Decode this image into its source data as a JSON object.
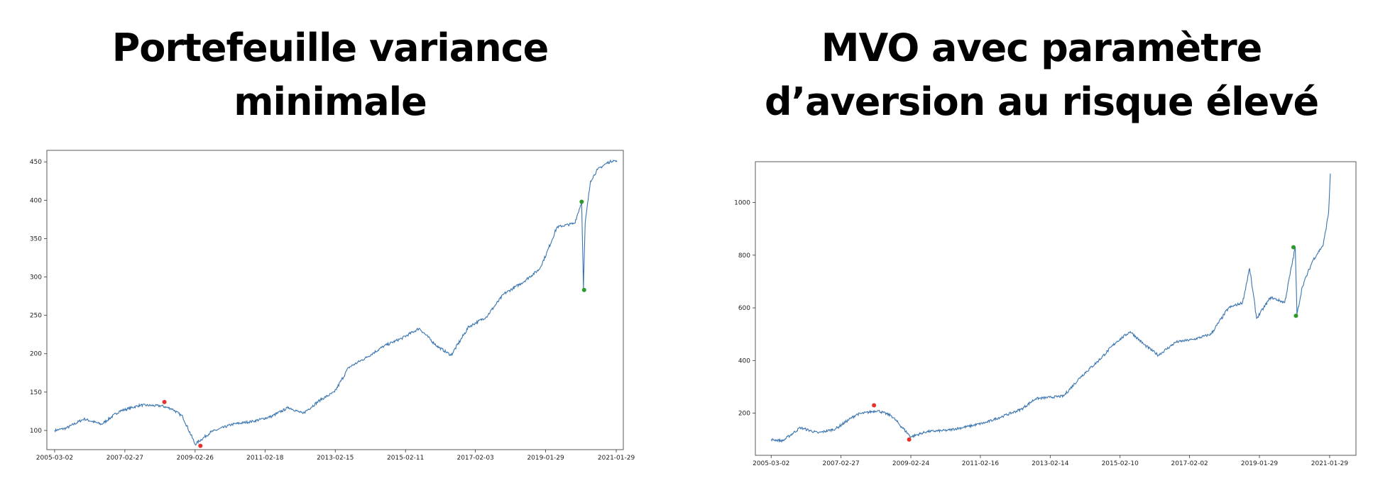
{
  "panels": [
    {
      "title_line1": "Portefeuille variance",
      "title_line2": "minimale"
    },
    {
      "title_line1": "MVO avec paramètre",
      "title_line2": "d’aversion au risque élevé"
    }
  ],
  "chart_data": [
    {
      "type": "line",
      "title": "Portefeuille variance minimale",
      "xlabel": "",
      "ylabel": "",
      "grid": false,
      "x_tick_labels": [
        "2005-03-02",
        "2007-02-27",
        "2009-02-26",
        "2011-02-18",
        "2013-02-15",
        "2015-02-11",
        "2017-02-03",
        "2019-01-29",
        "2021-01-29"
      ],
      "x_ticks_decimal_year": [
        2005.17,
        2007.16,
        2009.15,
        2011.13,
        2013.12,
        2015.11,
        2017.09,
        2019.08,
        2021.08
      ],
      "xlim": [
        2004.95,
        2021.28
      ],
      "ylim": [
        75,
        465
      ],
      "y_ticks": [
        100,
        150,
        200,
        250,
        300,
        350,
        400,
        450
      ],
      "series": [
        {
          "color": "#3a75b0",
          "x": [
            2005.17,
            2005.5,
            2006.0,
            2006.5,
            2007.0,
            2007.6,
            2008.2,
            2008.5,
            2008.8,
            2009.15,
            2009.6,
            2010.2,
            2010.8,
            2011.3,
            2011.8,
            2012.2,
            2012.7,
            2013.1,
            2013.5,
            2014.0,
            2014.5,
            2015.0,
            2015.5,
            2016.0,
            2016.4,
            2016.9,
            2017.4,
            2017.9,
            2018.4,
            2018.9,
            2019.1,
            2019.4,
            2019.9,
            2020.1,
            2020.15,
            2020.2,
            2020.35,
            2020.55,
            2020.8,
            2021.0,
            2021.1
          ],
          "y": [
            100,
            103,
            115,
            108,
            125,
            133,
            132,
            128,
            118,
            82,
            98,
            108,
            112,
            118,
            130,
            122,
            140,
            150,
            182,
            195,
            210,
            220,
            233,
            210,
            198,
            235,
            248,
            278,
            292,
            310,
            330,
            365,
            370,
            398,
            285,
            370,
            425,
            440,
            448,
            452,
            450
          ]
        }
      ],
      "markers": [
        {
          "x": 2008.28,
          "y": 137,
          "color": "#e8312a"
        },
        {
          "x": 2009.3,
          "y": 80,
          "color": "#e8312a"
        },
        {
          "x": 2020.1,
          "y": 398,
          "color": "#2a9a2a"
        },
        {
          "x": 2020.17,
          "y": 283,
          "color": "#2a9a2a"
        }
      ]
    },
    {
      "type": "line",
      "title": "MVO avec paramètre d’aversion au risque élevé",
      "xlabel": "",
      "ylabel": "",
      "grid": false,
      "x_tick_labels": [
        "2005-03-02",
        "2007-02-27",
        "2009-02-24",
        "2011-02-16",
        "2013-02-14",
        "2015-02-10",
        "2017-02-02",
        "2019-01-29",
        "2021-01-29"
      ],
      "x_ticks_decimal_year": [
        2005.17,
        2007.16,
        2009.15,
        2011.13,
        2013.12,
        2015.11,
        2017.09,
        2019.08,
        2021.08
      ],
      "xlim": [
        2004.72,
        2021.83
      ],
      "ylim": [
        40,
        1155
      ],
      "y_ticks": [
        200,
        400,
        600,
        800,
        1000
      ],
      "series": [
        {
          "color": "#3a75b0",
          "x": [
            2005.17,
            2005.5,
            2006.0,
            2006.5,
            2007.0,
            2007.6,
            2008.2,
            2008.6,
            2009.15,
            2009.6,
            2010.2,
            2010.8,
            2011.3,
            2011.8,
            2012.3,
            2012.7,
            2013.1,
            2013.5,
            2014.0,
            2014.5,
            2015.0,
            2015.4,
            2015.8,
            2016.2,
            2016.7,
            2017.2,
            2017.7,
            2018.2,
            2018.6,
            2018.8,
            2019.0,
            2019.4,
            2019.8,
            2020.1,
            2020.15,
            2020.3,
            2020.6,
            2020.9,
            2021.05,
            2021.1
          ],
          "y": [
            100,
            95,
            145,
            125,
            140,
            195,
            210,
            190,
            110,
            130,
            135,
            150,
            165,
            190,
            215,
            255,
            260,
            265,
            340,
            400,
            470,
            510,
            460,
            420,
            470,
            480,
            500,
            600,
            620,
            750,
            560,
            640,
            620,
            830,
            575,
            680,
            780,
            840,
            960,
            1110
          ]
        }
      ],
      "markers": [
        {
          "x": 2008.1,
          "y": 230,
          "color": "#e8312a"
        },
        {
          "x": 2009.1,
          "y": 100,
          "color": "#e8312a"
        },
        {
          "x": 2020.05,
          "y": 830,
          "color": "#2a9a2a"
        },
        {
          "x": 2020.12,
          "y": 570,
          "color": "#2a9a2a"
        }
      ]
    }
  ]
}
